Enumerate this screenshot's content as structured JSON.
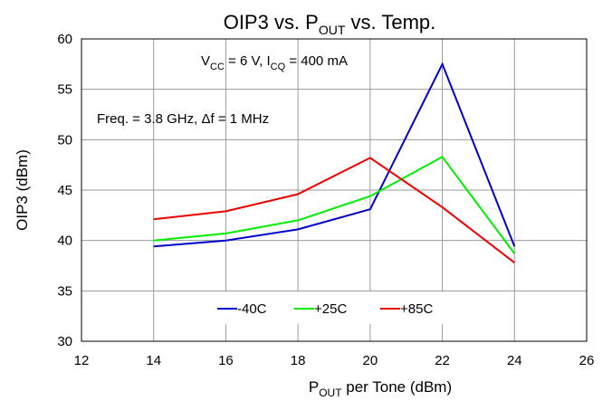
{
  "chart_data": {
    "type": "line",
    "title_main": "OIP3 vs. P",
    "title_sub": "OUT",
    "title_rest": " vs. Temp.",
    "xlabel_main": "P",
    "xlabel_sub": "OUT",
    "xlabel_rest": " per Tone (dBm)",
    "ylabel": "OIP3 (dBm)",
    "xlim": [
      12,
      26
    ],
    "ylim": [
      30,
      60
    ],
    "xticks": [
      12,
      14,
      16,
      18,
      20,
      22,
      24,
      26
    ],
    "yticks": [
      30,
      35,
      40,
      45,
      50,
      55,
      60
    ],
    "grid": true,
    "annotation_vcc": {
      "v": "V",
      "v_sub": "CC",
      "v_rest": " = 6 V, I",
      "i_sub": "CQ",
      "i_rest": " = 400 mA"
    },
    "annotation_freq": "Freq. = 3.8 GHz, Δf = 1 MHz",
    "x": [
      14,
      16,
      18,
      20,
      22,
      24
    ],
    "series": [
      {
        "name": "-40C",
        "color": "#0000cc",
        "values": [
          39.4,
          40.0,
          41.1,
          43.1,
          57.5,
          39.4
        ]
      },
      {
        "name": "+25C",
        "color": "#00ee00",
        "values": [
          40.0,
          40.7,
          42.0,
          44.4,
          48.3,
          38.7
        ]
      },
      {
        "name": "+85C",
        "color": "#ee0000",
        "values": [
          42.1,
          42.9,
          44.6,
          48.2,
          43.3,
          37.8
        ]
      }
    ],
    "legend_position": "bottom-center"
  }
}
